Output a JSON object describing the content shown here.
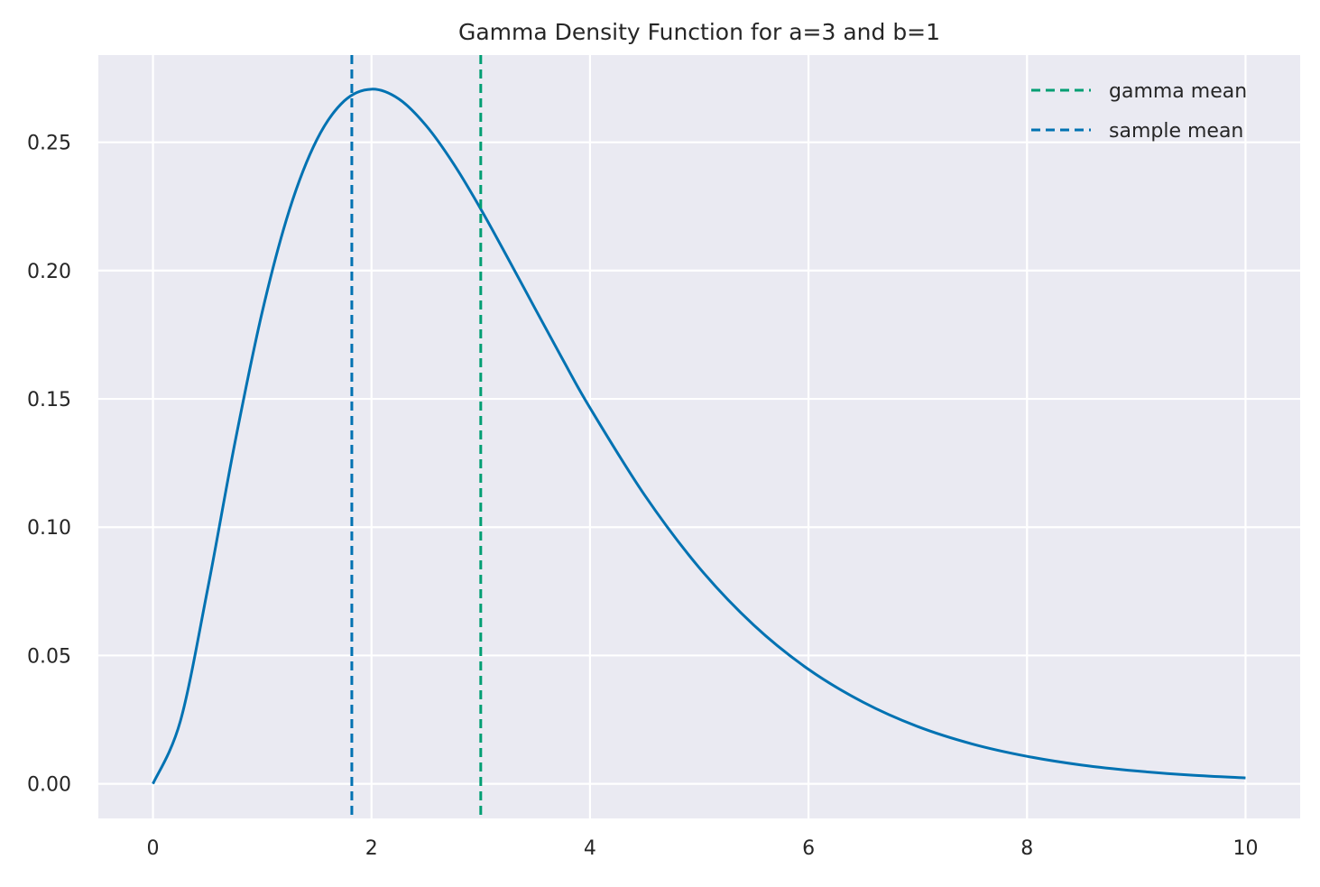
{
  "chart_data": {
    "type": "line",
    "title": "Gamma Density Function for a=3 and b=1",
    "xlabel": "",
    "ylabel": "",
    "xlim": [
      -0.5,
      10.5
    ],
    "ylim": [
      -0.0135,
      0.284
    ],
    "xticks": [
      0,
      2,
      4,
      6,
      8,
      10
    ],
    "xtick_labels": [
      "0",
      "2",
      "4",
      "6",
      "8",
      "10"
    ],
    "yticks": [
      0.0,
      0.05,
      0.1,
      0.15,
      0.2,
      0.25
    ],
    "ytick_labels": [
      "0.00",
      "0.05",
      "0.10",
      "0.15",
      "0.20",
      "0.25"
    ],
    "grid": true,
    "background_color": "#eaeaf2",
    "grid_color": "#ffffff",
    "legend_position": "top-right",
    "series": [
      {
        "color": "#0072b2",
        "style": "solid",
        "x": [
          0,
          0.25,
          0.5,
          0.75,
          1.0,
          1.25,
          1.5,
          1.75,
          2.0,
          2.25,
          2.5,
          2.75,
          3.0,
          3.25,
          3.5,
          3.75,
          4.0,
          4.5,
          5.0,
          5.5,
          6.0,
          6.5,
          7.0,
          7.5,
          8.0,
          8.5,
          9.0,
          9.5,
          10.0
        ],
        "y": [
          0.0,
          0.0243,
          0.0758,
          0.1329,
          0.1839,
          0.2238,
          0.251,
          0.2661,
          0.2707,
          0.2669,
          0.2565,
          0.2417,
          0.224,
          0.2047,
          0.185,
          0.1654,
          0.1465,
          0.1125,
          0.0842,
          0.0618,
          0.0446,
          0.0318,
          0.0223,
          0.0155,
          0.0107,
          0.0073,
          0.005,
          0.0034,
          0.0023
        ]
      }
    ],
    "vlines": [
      {
        "name": "gamma mean",
        "x": 3.0,
        "color": "#009e73",
        "style": "dashed"
      },
      {
        "name": "sample mean",
        "x": 1.82,
        "color": "#0072b2",
        "style": "dashed"
      }
    ]
  }
}
